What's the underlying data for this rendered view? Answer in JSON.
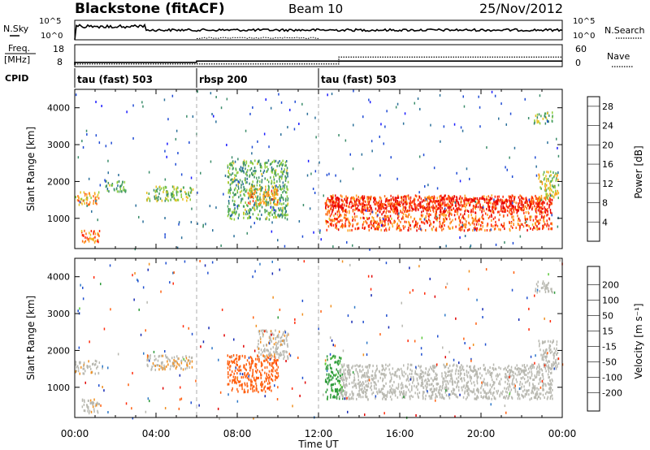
{
  "header": {
    "title": "Blackstone (fitACF)",
    "beam": "Beam 10",
    "date": "25/Nov/2012"
  },
  "top_panels": {
    "nsky_label": "N.Sky",
    "nsky_ticks": [
      "10^5",
      "10^0"
    ],
    "nsearch_label": "N.Search",
    "nsearch_ticks": [
      "10^5",
      "10^0"
    ],
    "freq_label_line1": "Freq.",
    "freq_label_line2": "[MHz]",
    "freq_ticks": [
      "18",
      "8"
    ],
    "nave_label": "Nave",
    "nave_ticks": [
      "60",
      "0"
    ],
    "cpid_label": "CPID"
  },
  "cpid_segments": [
    {
      "label": "tau (fast) 503",
      "start_h": 0,
      "end_h": 6
    },
    {
      "label": "rbsp 200",
      "start_h": 6,
      "end_h": 12
    },
    {
      "label": "tau (fast) 503",
      "start_h": 12,
      "end_h": 24
    }
  ],
  "axes": {
    "ylabel": "Slant Range [km]",
    "xlabel": "Time UT",
    "x_ticks": [
      "00:00",
      "04:00",
      "08:00",
      "12:00",
      "16:00",
      "20:00",
      "00:00"
    ],
    "y_ticks": [
      "1000",
      "2000",
      "3000",
      "4000"
    ]
  },
  "colorbars": {
    "power": {
      "label": "Power [dB]",
      "ticks": [
        "4",
        "8",
        "12",
        "16",
        "20",
        "24",
        "28"
      ],
      "colors": [
        "#1a1aff",
        "#1f4bd4",
        "#2a6f9a",
        "#3a8c6a",
        "#4da85a",
        "#8fcd3a",
        "#e8c020",
        "#ffa020",
        "#ff6a10",
        "#ff2a0a",
        "#e80000"
      ]
    },
    "velocity": {
      "label": "Velocity [m s⁻¹]",
      "ticks": [
        "200",
        "100",
        "50",
        "15",
        "-15",
        "-50",
        "-100",
        "-200"
      ],
      "colors": [
        "#1428b4",
        "#1e4ecf",
        "#2d78c8",
        "#2d9a3a",
        "#5ac83a",
        "#b8b8b0",
        "#c8c8c0",
        "#f09020",
        "#ff6010",
        "#ff2a0a",
        "#e00000"
      ]
    }
  },
  "chart_data": {
    "type": "heatmap",
    "title": "Blackstone (fitACF)",
    "subtitle": "Beam 10",
    "date": "25/Nov/2012",
    "xlabel": "Time UT",
    "ylabel": "Slant Range [km]",
    "xlim_hours": [
      0,
      24
    ],
    "ylim_km": [
      180,
      4500
    ],
    "panels": [
      {
        "name": "Power",
        "units": "dB",
        "clim": [
          0,
          30
        ],
        "regions": [
          {
            "t0": 0.0,
            "t1": 1.2,
            "r0": 1400,
            "r1": 1750,
            "value": 20
          },
          {
            "t0": 0.3,
            "t1": 1.2,
            "r0": 300,
            "r1": 700,
            "value": 22
          },
          {
            "t0": 1.5,
            "t1": 2.6,
            "r0": 1750,
            "r1": 2050,
            "value": 12
          },
          {
            "t0": 3.5,
            "t1": 5.8,
            "r0": 1500,
            "r1": 1900,
            "value": 14
          },
          {
            "t0": 7.5,
            "t1": 10.5,
            "r0": 1000,
            "r1": 2600,
            "value": 12
          },
          {
            "t0": 8.5,
            "t1": 10.0,
            "r0": 1400,
            "r1": 1900,
            "value": 20
          },
          {
            "t0": 12.3,
            "t1": 23.5,
            "r0": 700,
            "r1": 1650,
            "value": 24
          },
          {
            "t0": 12.3,
            "t1": 23.5,
            "r0": 1200,
            "r1": 1600,
            "value": 28
          },
          {
            "t0": 22.8,
            "t1": 23.8,
            "r0": 1500,
            "r1": 2300,
            "value": 16
          },
          {
            "t0": 22.6,
            "t1": 23.5,
            "r0": 3600,
            "r1": 3900,
            "value": 14
          }
        ]
      },
      {
        "name": "Velocity",
        "units": "m s-1",
        "clim": [
          -200,
          200
        ],
        "regions": [
          {
            "t0": 0.0,
            "t1": 1.2,
            "r0": 1400,
            "r1": 1750,
            "value": -5
          },
          {
            "t0": 0.3,
            "t1": 1.2,
            "r0": 300,
            "r1": 700,
            "value": -5
          },
          {
            "t0": 3.5,
            "t1": 5.8,
            "r0": 1500,
            "r1": 1900,
            "value": -10
          },
          {
            "t0": 7.5,
            "t1": 10.0,
            "r0": 900,
            "r1": 1900,
            "value": -70
          },
          {
            "t0": 9.0,
            "t1": 10.5,
            "r0": 1800,
            "r1": 2600,
            "value": -5
          },
          {
            "t0": 12.3,
            "t1": 13.2,
            "r0": 700,
            "r1": 1900,
            "value": 35
          },
          {
            "t0": 13.0,
            "t1": 23.5,
            "r0": 700,
            "r1": 1650,
            "value": 0
          },
          {
            "t0": 22.8,
            "t1": 23.8,
            "r0": 1500,
            "r1": 2300,
            "value": 0
          },
          {
            "t0": 22.6,
            "t1": 23.5,
            "r0": 3600,
            "r1": 3900,
            "value": 0
          }
        ]
      }
    ],
    "cpid": [
      {
        "label": "tau (fast) 503",
        "start_h": 0,
        "end_h": 6
      },
      {
        "label": "rbsp 200",
        "start_h": 6,
        "end_h": 12
      },
      {
        "label": "tau (fast) 503",
        "start_h": 12,
        "end_h": 24
      }
    ],
    "frequency_mhz": [
      {
        "start_h": 0,
        "end_h": 6,
        "value": 10
      },
      {
        "start_h": 6,
        "end_h": 12.5,
        "value": 11
      },
      {
        "start_h": 12.5,
        "end_h": 24,
        "value": 11
      }
    ],
    "nave": [
      {
        "start_h": 0,
        "end_h": 13,
        "value": 8
      },
      {
        "start_h": 13,
        "end_h": 24,
        "value": 38
      }
    ]
  }
}
